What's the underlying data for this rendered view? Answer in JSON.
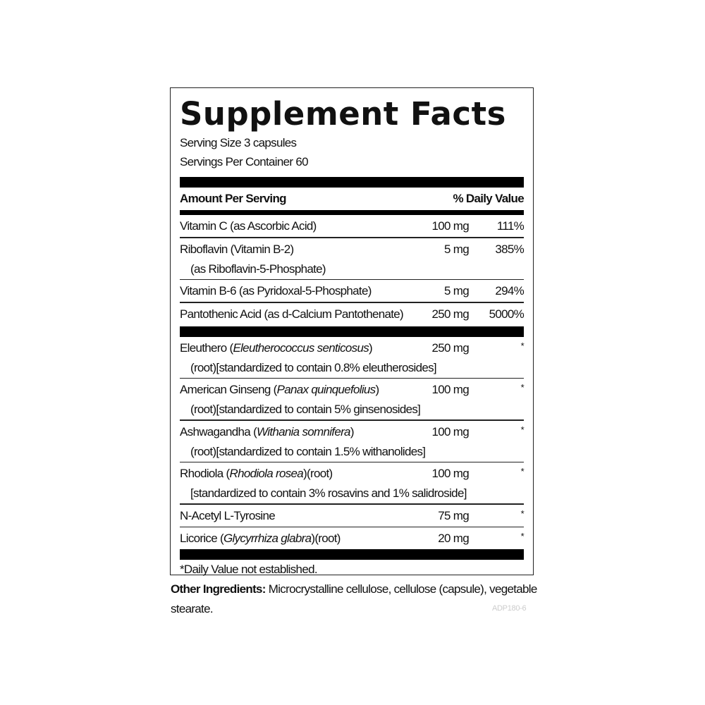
{
  "title": "Supplement Facts",
  "serving_size": "Serving Size 3 capsules",
  "servings_per_container": "Servings Per Container 60",
  "header": {
    "amount_per_serving": "Amount Per Serving",
    "daily_value": "% Daily Value"
  },
  "vitamins": [
    {
      "name": "Vitamin C (as Ascorbic Acid)",
      "sub": "",
      "amount": "100 mg",
      "dv": "111%"
    },
    {
      "name": "Riboflavin (Vitamin B-2)",
      "sub": "(as Riboflavin-5-Phosphate)",
      "amount": "5 mg",
      "dv": "385%"
    },
    {
      "name": "Vitamin B-6 (as Pyridoxal-5-Phosphate)",
      "sub": "",
      "amount": "5 mg",
      "dv": "294%"
    },
    {
      "name": "Pantothenic Acid (as d-Calcium Pantothenate)",
      "sub": "",
      "amount": "250 mg",
      "dv": "5000%"
    }
  ],
  "herbs": [
    {
      "pre": "Eleuthero (",
      "italic": "Eleutherococcus senticosus",
      "post": ")",
      "sub": "(root)[standardized to contain 0.8% eleutherosides]",
      "amount": "250 mg",
      "dv": "*"
    },
    {
      "pre": "American Ginseng (",
      "italic": "Panax quinquefolius",
      "post": ")",
      "sub": "(root)[standardized to contain 5% ginsenosides]",
      "amount": "100 mg",
      "dv": "*"
    },
    {
      "pre": "Ashwagandha (",
      "italic": "Withania somnifera",
      "post": ")",
      "sub": "(root)[standardized to contain 1.5% withanolides]",
      "amount": "100 mg",
      "dv": "*"
    },
    {
      "pre": "Rhodiola (",
      "italic": "Rhodiola rosea",
      "post": ")(root)",
      "sub": "[standardized to contain 3% rosavins and 1% salidroside]",
      "amount": "100 mg",
      "dv": "*"
    },
    {
      "pre": "N-Acetyl L-Tyrosine",
      "italic": "",
      "post": "",
      "sub": "",
      "amount": "75 mg",
      "dv": "*"
    },
    {
      "pre": "Licorice (",
      "italic": "Glycyrrhiza glabra",
      "post": ")(root)",
      "sub": "",
      "amount": "20 mg",
      "dv": "*"
    }
  ],
  "footnote": "*Daily Value not established.",
  "other_ingredients": {
    "label": "Other Ingredients:",
    "text": " Microcrystalline cellulose, cellulose (capsule), vegetable stearate."
  },
  "product_code": "ADP180-6"
}
